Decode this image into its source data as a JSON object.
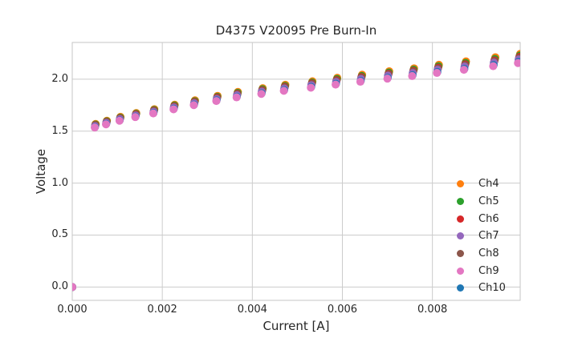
{
  "figure": {
    "background": "#ffffff",
    "text_color": "#262626"
  },
  "chart_data": {
    "type": "scatter",
    "title": "D4375 V20095 Pre Burn-In",
    "xlabel": "Current [A]",
    "ylabel": "Voltage",
    "xlim": [
      0,
      0.00995
    ],
    "ylim": [
      -0.128,
      2.353
    ],
    "xticks": {
      "values": [
        0,
        0.002,
        0.004,
        0.006,
        0.008
      ],
      "labels": [
        "0.000",
        "0.002",
        "0.004",
        "0.006",
        "0.008"
      ]
    },
    "yticks": {
      "values": [
        0,
        0.5,
        1.0,
        1.5,
        2.0
      ],
      "labels": [
        "0.0",
        "0.5",
        "1.0",
        "1.5",
        "2.0"
      ]
    },
    "grid": true,
    "grid_color": "#cccccc",
    "spine_color": "#c6c6c6",
    "marker_diameter": 10,
    "legend_position": "lower right",
    "x": [
      0,
      0.0005,
      0.00075,
      0.00105,
      0.0014,
      0.0018,
      0.00225,
      0.0027,
      0.0032,
      0.00365,
      0.0042,
      0.0047,
      0.0053,
      0.00585,
      0.0064,
      0.007,
      0.00755,
      0.0081,
      0.0087,
      0.00935,
      0.0099
    ],
    "series": [
      {
        "name": "Ch4",
        "color": "#ff7f0e",
        "draw_order": 1,
        "current_shift": 5e-05,
        "values": [
          0,
          1.569,
          1.6,
          1.637,
          1.674,
          1.711,
          1.754,
          1.796,
          1.839,
          1.877,
          1.913,
          1.946,
          1.979,
          2.013,
          2.043,
          2.076,
          2.104,
          2.138,
          2.171,
          2.21,
          2.243
        ]
      },
      {
        "name": "Ch5",
        "color": "#2ca02c",
        "draw_order": 2,
        "current_shift": 4e-05,
        "values": [
          0,
          1.563,
          1.594,
          1.63,
          1.667,
          1.704,
          1.746,
          1.788,
          1.83,
          1.868,
          1.903,
          1.935,
          1.968,
          2.001,
          2.03,
          2.063,
          2.091,
          2.124,
          2.156,
          2.194,
          2.227
        ]
      },
      {
        "name": "Ch6",
        "color": "#d62728",
        "draw_order": 3,
        "current_shift": 3e-05,
        "values": [
          0,
          1.557,
          1.588,
          1.624,
          1.661,
          1.697,
          1.739,
          1.781,
          1.823,
          1.859,
          1.894,
          1.926,
          1.959,
          1.991,
          2.02,
          2.052,
          2.079,
          2.111,
          2.143,
          2.181,
          2.213
        ]
      },
      {
        "name": "Ch7",
        "color": "#9467bd",
        "draw_order": 5,
        "current_shift": 1.5e-05,
        "values": [
          0,
          1.548,
          1.579,
          1.614,
          1.65,
          1.686,
          1.727,
          1.768,
          1.809,
          1.845,
          1.879,
          1.91,
          1.942,
          1.973,
          2.001,
          2.033,
          2.059,
          2.09,
          2.121,
          2.158,
          2.189
        ]
      },
      {
        "name": "Ch8",
        "color": "#8c564b",
        "draw_order": 4,
        "current_shift": 2.5e-05,
        "values": [
          0,
          1.553,
          1.584,
          1.62,
          1.656,
          1.692,
          1.734,
          1.775,
          1.817,
          1.853,
          1.888,
          1.92,
          1.952,
          1.983,
          2.012,
          2.044,
          2.071,
          2.102,
          2.134,
          2.171,
          2.203
        ]
      },
      {
        "name": "Ch9",
        "color": "#e377c2",
        "draw_order": 7,
        "current_shift": 0,
        "values": [
          0,
          1.535,
          1.565,
          1.6,
          1.635,
          1.67,
          1.71,
          1.75,
          1.79,
          1.825,
          1.858,
          1.888,
          1.918,
          1.948,
          1.975,
          2.005,
          2.03,
          2.06,
          2.09,
          2.125,
          2.155
        ]
      },
      {
        "name": "Ch10",
        "color": "#1f77b4",
        "draw_order": 6,
        "current_shift": 1e-05,
        "values": [
          0,
          1.539,
          1.569,
          1.604,
          1.639,
          1.675,
          1.715,
          1.755,
          1.796,
          1.831,
          1.864,
          1.895,
          1.925,
          1.955,
          1.983,
          2.013,
          2.038,
          2.069,
          2.099,
          2.135,
          2.165
        ]
      }
    ]
  }
}
